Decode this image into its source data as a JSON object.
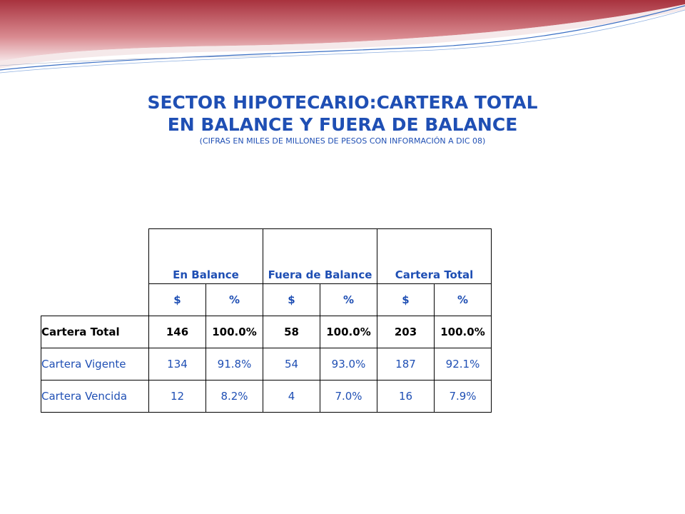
{
  "title": {
    "line1": "SECTOR HIPOTECARIO:CARTERA TOTAL",
    "line2": "EN BALANCE Y FUERA DE BALANCE",
    "subtitle": "(CIFRAS EN MILES DE MILLONES DE PESOS CON INFORMACIÓN A DIC 08)"
  },
  "table": {
    "groups": [
      "En Balance",
      "Fuera de Balance",
      "Cartera Total"
    ],
    "subheaders": [
      "$",
      "%",
      "$",
      "%",
      "$",
      "%"
    ],
    "rows": [
      {
        "label": "Cartera Total",
        "cells": [
          "146",
          "100.0%",
          "58",
          "100.0%",
          "203",
          "100.0%"
        ]
      },
      {
        "label": "Cartera Vigente",
        "cells": [
          "134",
          "91.8%",
          "54",
          "93.0%",
          "187",
          "92.1%"
        ]
      },
      {
        "label": "Cartera Vencida",
        "cells": [
          "12",
          "8.2%",
          "4",
          "7.0%",
          "16",
          "7.9%"
        ]
      }
    ]
  },
  "colors": {
    "title": "#1f4fb4",
    "header_band": "#c0505a",
    "accent_line": "#3a6fc4"
  }
}
